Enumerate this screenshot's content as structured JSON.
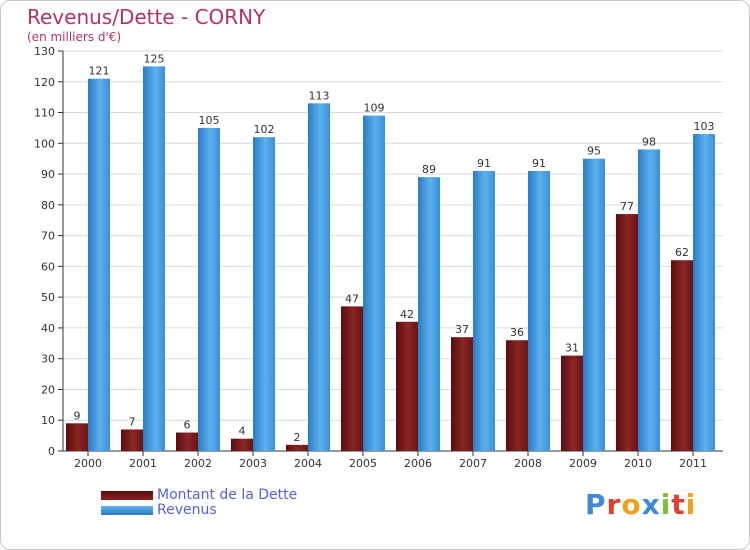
{
  "chart_data": {
    "type": "bar",
    "title": "Revenus/Dette - CORNY",
    "subtitle": "(en milliers d'€)",
    "categories": [
      "2000",
      "2001",
      "2002",
      "2003",
      "2004",
      "2005",
      "2006",
      "2007",
      "2008",
      "2009",
      "2010",
      "2011"
    ],
    "series": [
      {
        "name": "Montant de la Dette",
        "values": [
          9,
          7,
          6,
          4,
          2,
          47,
          42,
          37,
          36,
          31,
          77,
          62
        ],
        "color": "#7a1a1a"
      },
      {
        "name": "Revenus",
        "values": [
          121,
          125,
          105,
          102,
          113,
          109,
          89,
          91,
          91,
          95,
          98,
          103
        ],
        "color": "#3d95dc"
      }
    ],
    "ylim": [
      0,
      130
    ],
    "yticks": [
      0,
      10,
      20,
      30,
      40,
      50,
      60,
      70,
      80,
      90,
      100,
      110,
      120,
      130
    ],
    "xlabel": "",
    "ylabel": "",
    "grid": true,
    "legend_position": "bottom-left"
  },
  "logo": {
    "text": "Proxiti",
    "letter_colors": [
      "#3d8ad6",
      "#e0402f",
      "#f2a21a",
      "#3d8ad6",
      "#7bbf3a",
      "#e0402f",
      "#f2a21a"
    ]
  },
  "colors": {
    "title": "#b0326a",
    "legend_text": "#5860d8",
    "grid": "#d9d9d9",
    "axis": "#333333"
  }
}
